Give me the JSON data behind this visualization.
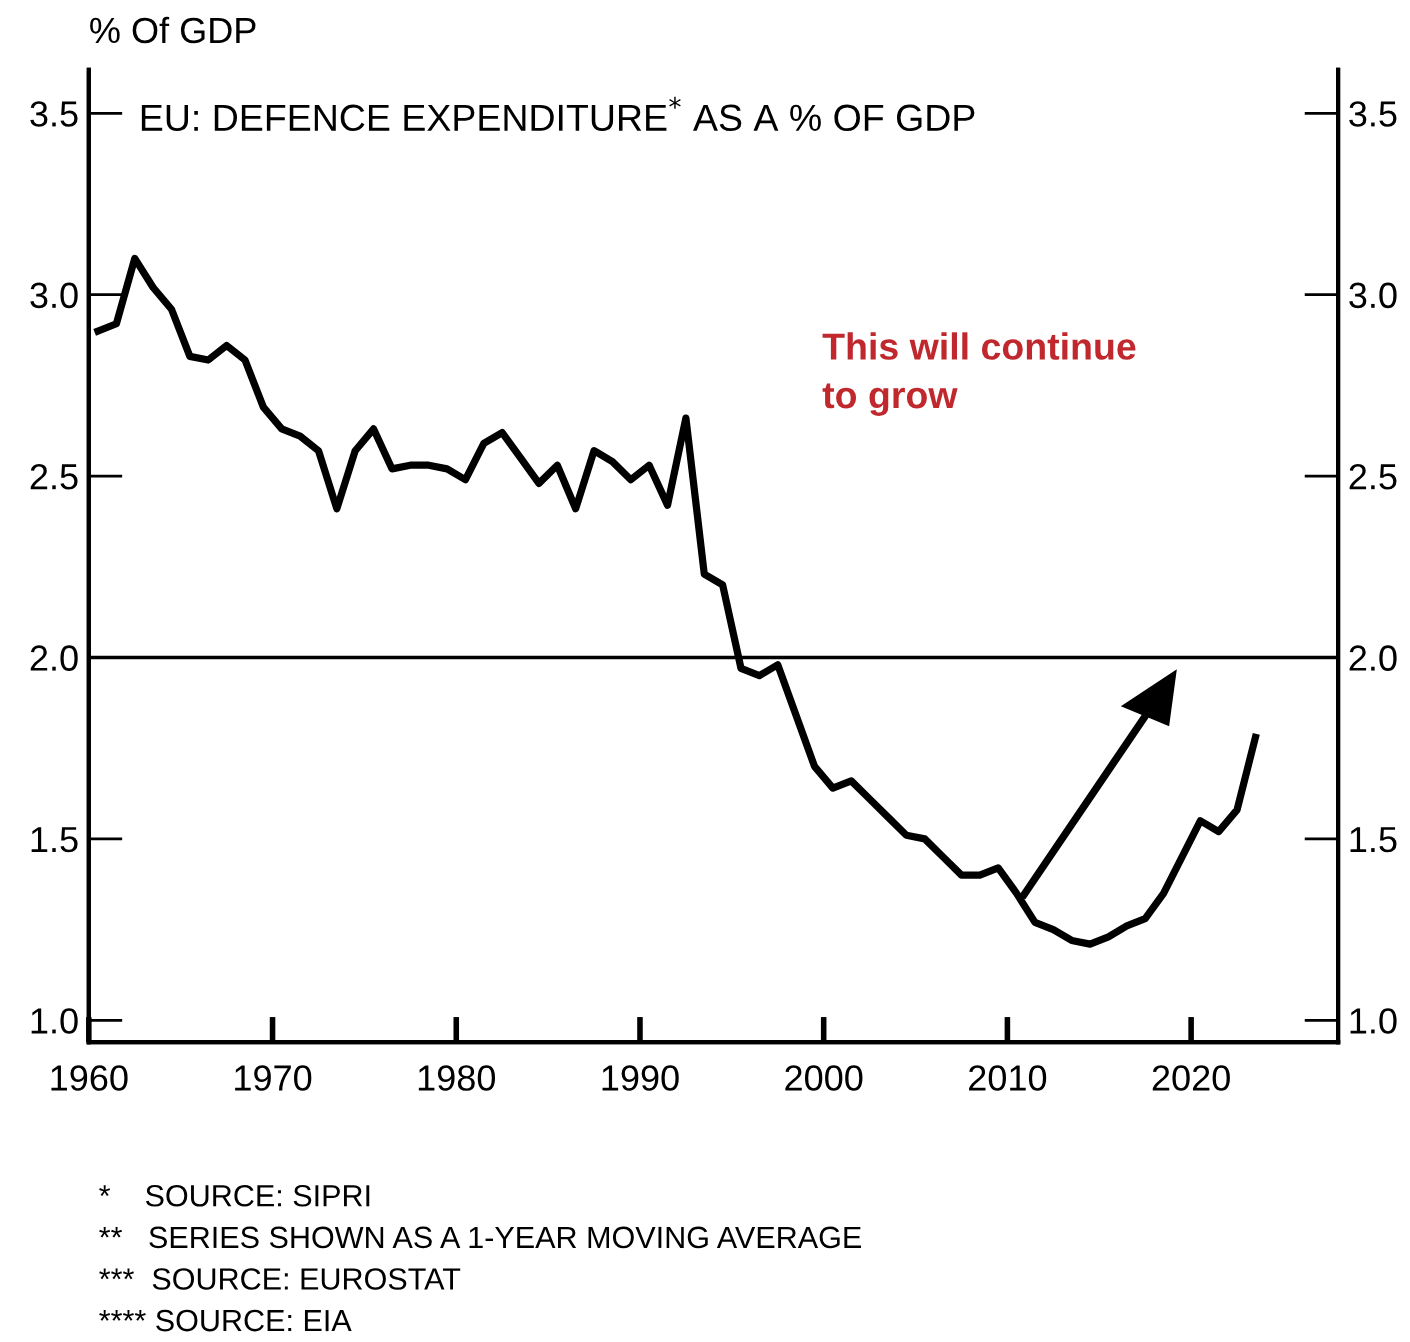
{
  "chart_data": {
    "type": "line",
    "title": "EU: DEFENCE EXPENDITURE$^{*}$ AS A % OF GDP",
    "ylabel": "% Of GDP",
    "x": [
      1960.5,
      1961.5,
      1962.5,
      1963.5,
      1964.5,
      1965.5,
      1966.5,
      1967.5,
      1968.5,
      1969.5,
      1970.5,
      1971.5,
      1972.5,
      1973.5,
      1974.5,
      1975.5,
      1976.5,
      1977.5,
      1978.5,
      1979.5,
      1980.5,
      1981.5,
      1982.5,
      1983.5,
      1984.5,
      1985.5,
      1986.5,
      1987.5,
      1988.5,
      1989.5,
      1990.5,
      1991.5,
      1992.5,
      1993.5,
      1994.5,
      1995.5,
      1996.5,
      1997.5,
      1998.5,
      1999.5,
      2000.5,
      2001.5,
      2002.5,
      2003.5,
      2004.5,
      2005.5,
      2006.5,
      2007.5,
      2008.5,
      2009.5,
      2010.5,
      2011.5,
      2012.5,
      2013.5,
      2014.5,
      2015.5,
      2016.5,
      2017.5,
      2018.5,
      2019.5,
      2020.5,
      2021.5,
      2022.5,
      2023.5
    ],
    "series": [
      {
        "color": "#000000",
        "values": [
          2.9,
          2.92,
          3.1,
          3.02,
          2.96,
          2.83,
          2.82,
          2.86,
          2.82,
          2.69,
          2.63,
          2.61,
          2.57,
          2.41,
          2.57,
          2.63,
          2.52,
          2.53,
          2.53,
          2.52,
          2.49,
          2.59,
          2.62,
          2.55,
          2.48,
          2.53,
          2.41,
          2.57,
          2.54,
          2.49,
          2.53,
          2.42,
          2.66,
          2.23,
          2.2,
          1.97,
          1.95,
          1.98,
          1.84,
          1.7,
          1.64,
          1.66,
          1.61,
          1.56,
          1.51,
          1.5,
          1.45,
          1.4,
          1.4,
          1.42,
          1.35,
          1.27,
          1.25,
          1.22,
          1.21,
          1.23,
          1.26,
          1.28,
          1.35,
          1.45,
          1.55,
          1.52,
          1.58,
          1.78
        ]
      }
    ],
    "xlim": [
      1960,
      2028
    ],
    "xticks": [
      1960,
      1970,
      1980,
      1990,
      2000,
      2010,
      2020
    ],
    "ylim": [
      0.94,
      3.62
    ],
    "yticks": [
      {
        "value": 1,
        "label": "1.0"
      },
      1.5,
      {
        "value": 2,
        "label": "2.0"
      },
      2.5,
      {
        "value": 3,
        "label": "3.0"
      },
      3.5
    ],
    "y2lim": [
      0.94,
      3.62
    ],
    "y2ticks": [
      {
        "value": 1,
        "label": "1.0"
      },
      1.5,
      {
        "value": 2,
        "label": "2.0"
      },
      2.5,
      {
        "value": 3,
        "label": "3.0"
      },
      3.5
    ],
    "ref_lines": [
      {
        "axis": "y",
        "value": 2.0,
        "color": "#000000"
      }
    ],
    "grid": false,
    "legend": false,
    "marker": "none",
    "line_style": "solid",
    "annotations": [
      "This will continue\nto grow",
      "*    SOURCE: SIPRI",
      "**   SERIES SHOWN AS A 1-YEAR MOVING AVERAGE",
      "***  SOURCE: EUROSTAT",
      "**** SOURCE: EIA"
    ]
  }
}
